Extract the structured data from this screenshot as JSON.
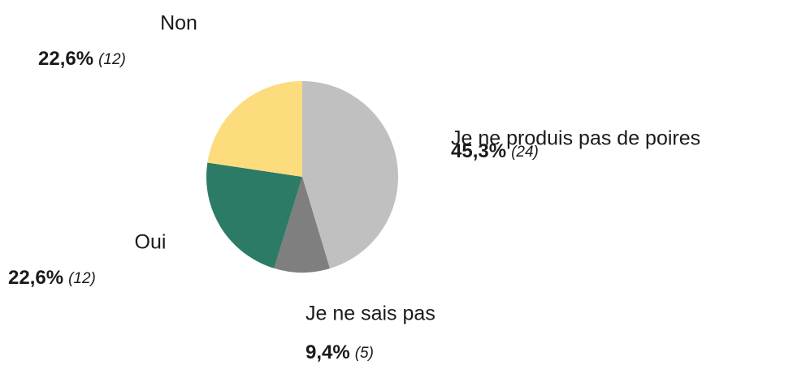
{
  "chart_data": {
    "type": "pie",
    "categories": [
      "Je ne produis pas de poires",
      "Je ne sais pas",
      "Oui",
      "Non"
    ],
    "values": [
      45.3,
      9.4,
      22.6,
      22.6
    ],
    "value_labels": [
      "45,3%",
      "9,4%",
      "22,6%",
      "22,6%"
    ],
    "counts": [
      24,
      5,
      12,
      12
    ],
    "count_labels": [
      "(24)",
      "(5)",
      "(12)",
      "(12)"
    ],
    "colors": [
      "#c0c0c0",
      "#7f7f7f",
      "#2b7b66",
      "#fddc7d"
    ]
  }
}
